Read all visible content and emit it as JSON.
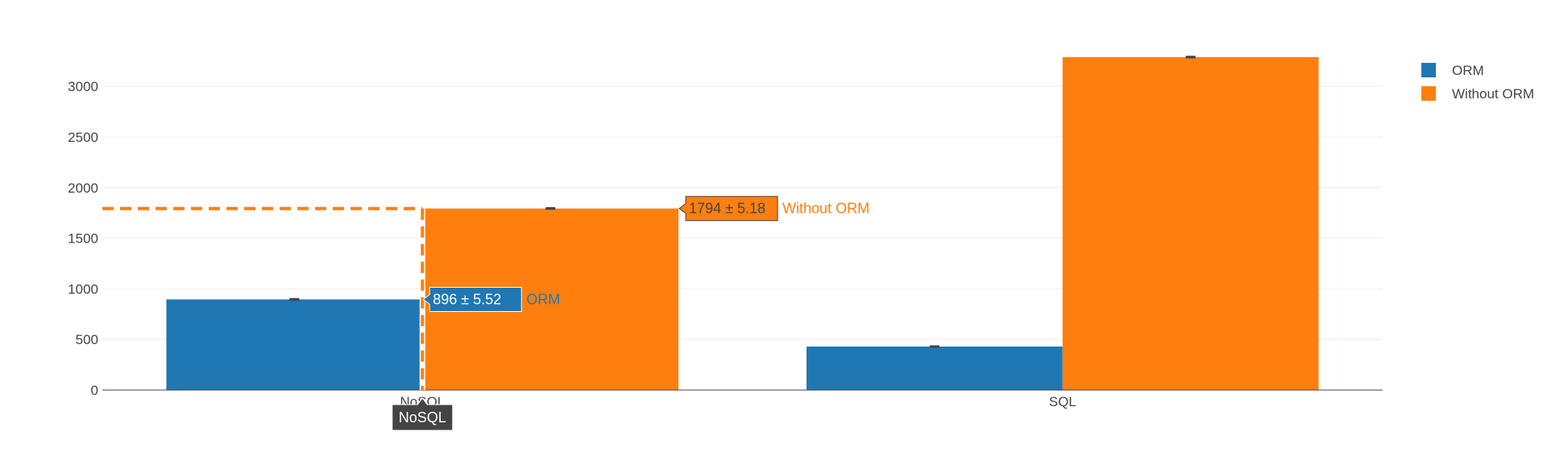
{
  "chart_data": {
    "type": "bar",
    "categories": [
      "NoSQL",
      "SQL"
    ],
    "series": [
      {
        "name": "ORM",
        "values": [
          896,
          430
        ],
        "errors": [
          5.52,
          4.0
        ],
        "color": "#1f77b4"
      },
      {
        "name": "Without ORM",
        "values": [
          1794,
          3290
        ],
        "errors": [
          5.18,
          5.0
        ],
        "color": "#ff7f0e"
      }
    ],
    "ylim": [
      0,
      3400
    ],
    "yticks": [
      0,
      500,
      1000,
      1500,
      2000,
      2500,
      3000
    ],
    "grid": true,
    "legend": "top-right",
    "hover": {
      "category": "NoSQL",
      "labels": [
        {
          "series": "Without ORM",
          "value_text": "1794 ± 5.18"
        },
        {
          "series": "ORM",
          "value_text": "896 ± 5.52"
        }
      ]
    }
  }
}
